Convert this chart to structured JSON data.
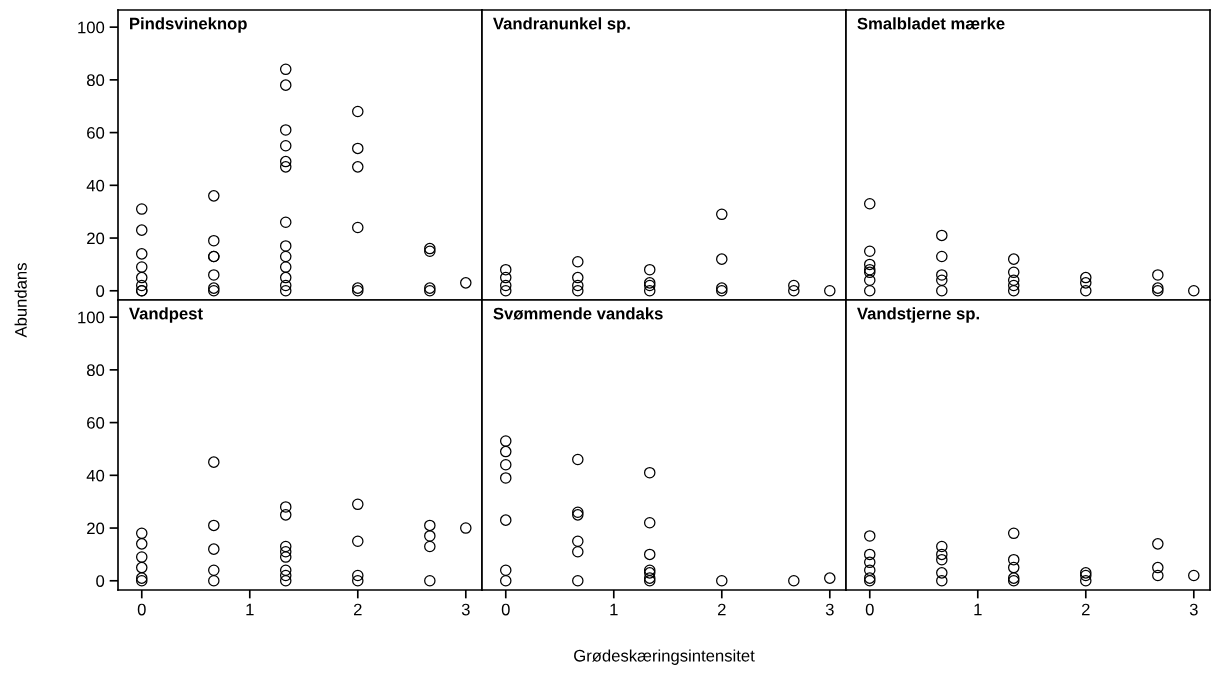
{
  "chart_data": [
    {
      "type": "scatter",
      "title": "Pindsvineknop",
      "ylabel": "Abundans",
      "xlim": [
        -0.22,
        3.15
      ],
      "ylim": [
        -3.5,
        106.5
      ],
      "xticks": [
        0,
        1,
        2,
        3
      ],
      "yticks": [
        0,
        20,
        40,
        60,
        80,
        100
      ],
      "tick_labels": "y",
      "marker": "circle",
      "grid": false,
      "series": [
        {
          "color": "#000000",
          "x": [
            0,
            0,
            0,
            0,
            0,
            0,
            0,
            0,
            0.667,
            0.667,
            0.667,
            0.667,
            0.667,
            0.667,
            0.667,
            1.333,
            1.333,
            1.333,
            1.333,
            1.333,
            1.333,
            1.333,
            1.333,
            1.333,
            1.333,
            1.333,
            1.333,
            1.333,
            2,
            2,
            2,
            2,
            2,
            2,
            2.667,
            2.667,
            2.667,
            2.667,
            3
          ],
          "values": [
            31,
            23,
            14,
            9,
            5,
            2,
            0,
            0,
            36,
            19,
            13,
            13,
            6,
            1,
            0,
            84,
            78,
            61,
            55,
            49,
            47,
            26,
            17,
            13,
            9,
            5,
            2,
            0,
            68,
            54,
            47,
            24,
            1,
            0,
            16,
            15,
            1,
            0,
            3
          ]
        }
      ]
    },
    {
      "type": "scatter",
      "title": "Vandranunkel sp.",
      "xlim": [
        -0.22,
        3.15
      ],
      "ylim": [
        -3.5,
        106.5
      ],
      "xticks": [
        0,
        1,
        2,
        3
      ],
      "yticks": [
        0,
        20,
        40,
        60,
        80,
        100
      ],
      "tick_labels": false,
      "marker": "circle",
      "grid": false,
      "series": [
        {
          "color": "#000000",
          "x": [
            0,
            0,
            0,
            0,
            0.667,
            0.667,
            0.667,
            0.667,
            1.333,
            1.333,
            1.333,
            1.333,
            2,
            2,
            2,
            2,
            2.667,
            2.667,
            3
          ],
          "values": [
            8,
            5,
            2,
            0,
            11,
            5,
            2,
            0,
            8,
            3,
            2,
            0,
            29,
            12,
            1,
            0,
            2,
            0,
            0
          ]
        }
      ]
    },
    {
      "type": "scatter",
      "title": "Smalbladet mærke",
      "xlim": [
        -0.22,
        3.15
      ],
      "ylim": [
        -3.5,
        106.5
      ],
      "xticks": [
        0,
        1,
        2,
        3
      ],
      "yticks": [
        0,
        20,
        40,
        60,
        80,
        100
      ],
      "tick_labels": false,
      "marker": "circle",
      "grid": false,
      "series": [
        {
          "color": "#000000",
          "x": [
            0,
            0,
            0,
            0,
            0,
            0,
            0,
            0.667,
            0.667,
            0.667,
            0.667,
            0.667,
            1.333,
            1.333,
            1.333,
            1.333,
            1.333,
            2,
            2,
            2,
            2.667,
            2.667,
            2.667,
            3
          ],
          "values": [
            33,
            15,
            10,
            8,
            7,
            4,
            0,
            21,
            13,
            6,
            4,
            0,
            12,
            7,
            4,
            2,
            0,
            5,
            3,
            0,
            6,
            1,
            0,
            0
          ]
        }
      ]
    },
    {
      "type": "scatter",
      "title": "Vandpest",
      "xlim": [
        -0.22,
        3.15
      ],
      "ylim": [
        -3.5,
        106.5
      ],
      "xticks": [
        0,
        1,
        2,
        3
      ],
      "yticks": [
        0,
        20,
        40,
        60,
        80,
        100
      ],
      "marker": "circle",
      "grid": false,
      "series": [
        {
          "color": "#000000",
          "x": [
            0,
            0,
            0,
            0,
            0,
            0,
            0.667,
            0.667,
            0.667,
            0.667,
            0.667,
            1.333,
            1.333,
            1.333,
            1.333,
            1.333,
            1.333,
            1.333,
            1.333,
            2,
            2,
            2,
            2,
            2.667,
            2.667,
            2.667,
            2.667,
            3
          ],
          "values": [
            18,
            14,
            9,
            5,
            1,
            0,
            45,
            21,
            12,
            4,
            0,
            28,
            25,
            13,
            11,
            9,
            4,
            2,
            0,
            29,
            15,
            2,
            0,
            21,
            17,
            13,
            0,
            20
          ]
        }
      ]
    },
    {
      "type": "scatter",
      "title": "Svømmende vandaks",
      "xlabel": "Grødeskæringsintensitet",
      "xlim": [
        -0.22,
        3.15
      ],
      "ylim": [
        -3.5,
        106.5
      ],
      "xticks": [
        0,
        1,
        2,
        3
      ],
      "yticks": [
        0,
        20,
        40,
        60,
        80,
        100
      ],
      "tick_labels": "x",
      "marker": "circle",
      "grid": false,
      "series": [
        {
          "color": "#000000",
          "x": [
            0,
            0,
            0,
            0,
            0,
            0,
            0,
            0.667,
            0.667,
            0.667,
            0.667,
            0.667,
            0.667,
            1.333,
            1.333,
            1.333,
            1.333,
            1.333,
            1.333,
            1.333,
            2,
            2.667,
            3
          ],
          "values": [
            53,
            49,
            44,
            39,
            23,
            4,
            0,
            46,
            26,
            25,
            15,
            11,
            0,
            41,
            22,
            10,
            4,
            3,
            1,
            0,
            0,
            0,
            1
          ]
        }
      ]
    },
    {
      "type": "scatter",
      "title": "Vandstjerne sp.",
      "xlim": [
        -0.22,
        3.15
      ],
      "ylim": [
        -3.5,
        106.5
      ],
      "xticks": [
        0,
        1,
        2,
        3
      ],
      "yticks": [
        0,
        20,
        40,
        60,
        80,
        100
      ],
      "tick_labels": "x",
      "marker": "circle",
      "grid": false,
      "series": [
        {
          "color": "#000000",
          "x": [
            0,
            0,
            0,
            0,
            0,
            0,
            0.667,
            0.667,
            0.667,
            0.667,
            0.667,
            1.333,
            1.333,
            1.333,
            1.333,
            1.333,
            2,
            2,
            2,
            2.667,
            2.667,
            2.667,
            3
          ],
          "values": [
            17,
            10,
            7,
            4,
            1,
            0,
            13,
            10,
            8,
            3,
            0,
            18,
            8,
            5,
            1,
            0,
            3,
            2,
            0,
            14,
            5,
            2,
            2
          ]
        }
      ]
    }
  ]
}
